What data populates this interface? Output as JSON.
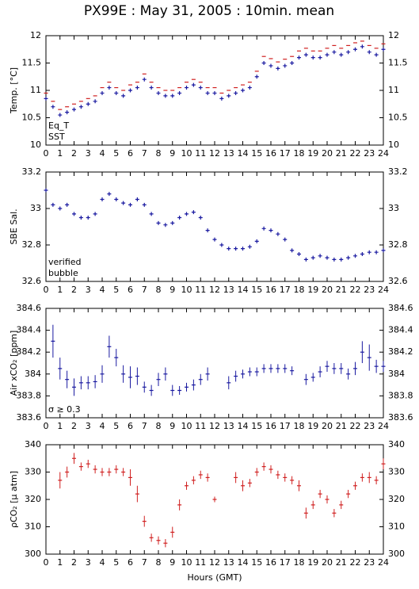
{
  "title": "PX99E : May 31, 2005 : 10min. mean",
  "chart_data": [
    {
      "type": "scatter",
      "ylabel": "Temp. [°C]",
      "x": [
        0,
        0.5,
        1,
        1.5,
        2,
        2.5,
        3,
        3.5,
        4,
        4.5,
        5,
        5.5,
        6,
        6.5,
        7,
        7.5,
        8,
        8.5,
        9,
        9.5,
        10,
        10.5,
        11,
        11.5,
        12,
        12.5,
        13,
        13.5,
        14,
        14.5,
        15,
        15.5,
        16,
        16.5,
        17,
        17.5,
        18,
        18.5,
        19,
        19.5,
        20,
        20.5,
        21,
        21.5,
        22,
        22.5,
        23,
        23.5,
        24
      ],
      "xlim": [
        0,
        24
      ],
      "xticks": [
        0,
        1,
        2,
        3,
        4,
        5,
        6,
        7,
        8,
        9,
        10,
        11,
        12,
        13,
        14,
        15,
        16,
        17,
        18,
        19,
        20,
        21,
        22,
        23,
        24
      ],
      "ylim": [
        10,
        12
      ],
      "yticks": [
        10,
        10.5,
        11,
        11.5,
        12
      ],
      "series": [
        {
          "name": "Eq_T",
          "color": "#d02020",
          "marker": "dash",
          "values": [
            10.95,
            10.8,
            10.65,
            10.7,
            10.75,
            10.8,
            10.85,
            10.9,
            11.05,
            11.15,
            11.05,
            11.0,
            11.1,
            11.15,
            11.3,
            11.15,
            11.05,
            11.0,
            11.0,
            11.05,
            11.15,
            11.2,
            11.15,
            11.05,
            11.05,
            10.95,
            11.0,
            11.05,
            11.1,
            11.15,
            11.35,
            11.62,
            11.58,
            11.52,
            11.57,
            11.62,
            11.72,
            11.77,
            11.72,
            11.72,
            11.77,
            11.82,
            11.77,
            11.82,
            11.87,
            11.9,
            11.82,
            11.77,
            11.85
          ]
        },
        {
          "name": "SST",
          "color": "#1a1aa0",
          "marker": "cross",
          "values": [
            10.85,
            10.7,
            10.55,
            10.6,
            10.65,
            10.7,
            10.75,
            10.8,
            10.95,
            11.05,
            10.95,
            10.9,
            11.0,
            11.05,
            11.2,
            11.05,
            10.95,
            10.9,
            10.9,
            10.95,
            11.05,
            11.1,
            11.05,
            10.95,
            10.95,
            10.85,
            10.9,
            10.95,
            11.0,
            11.05,
            11.25,
            11.5,
            11.45,
            11.4,
            11.45,
            11.5,
            11.6,
            11.65,
            11.6,
            11.6,
            11.65,
            11.7,
            11.65,
            11.7,
            11.75,
            11.8,
            11.7,
            11.65,
            11.75
          ]
        }
      ]
    },
    {
      "type": "scatter",
      "ylabel": "SBE Sal.",
      "x": [
        0,
        0.5,
        1,
        1.5,
        2,
        2.5,
        3,
        3.5,
        4,
        4.5,
        5,
        5.5,
        6,
        6.5,
        7,
        7.5,
        8,
        8.5,
        9,
        9.5,
        10,
        10.5,
        11,
        11.5,
        12,
        12.5,
        13,
        13.5,
        14,
        14.5,
        15,
        15.5,
        16,
        16.5,
        17,
        17.5,
        18,
        18.5,
        19,
        19.5,
        20,
        20.5,
        21,
        21.5,
        22,
        22.5,
        23,
        23.5,
        24
      ],
      "xlim": [
        0,
        24
      ],
      "xticks": [
        0,
        1,
        2,
        3,
        4,
        5,
        6,
        7,
        8,
        9,
        10,
        11,
        12,
        13,
        14,
        15,
        16,
        17,
        18,
        19,
        20,
        21,
        22,
        23,
        24
      ],
      "ylim": [
        32.6,
        33.2
      ],
      "yticks": [
        32.6,
        32.8,
        33,
        33.2
      ],
      "series": [
        {
          "name": "verified",
          "color": "#1a1aa0",
          "marker": "cross",
          "values": [
            33.1,
            33.02,
            33.0,
            33.02,
            32.97,
            32.95,
            32.95,
            32.97,
            33.05,
            33.08,
            33.05,
            33.03,
            33.02,
            33.05,
            33.02,
            32.97,
            32.92,
            32.91,
            32.92,
            32.95,
            32.97,
            32.98,
            32.95,
            32.88,
            32.83,
            32.8,
            32.78,
            32.78,
            32.78,
            32.79,
            32.82,
            32.89,
            32.88,
            32.86,
            32.83,
            32.77,
            32.75,
            32.72,
            32.73,
            32.74,
            32.73,
            32.72,
            32.72,
            32.73,
            32.74,
            32.75,
            32.76,
            32.76,
            32.77
          ]
        },
        {
          "name": "bubble",
          "color": "#c020c0",
          "marker": "cross",
          "values": [
            null,
            null,
            null,
            null,
            null,
            null,
            null,
            null,
            null,
            null,
            null,
            null,
            null,
            null,
            null,
            null,
            null,
            null,
            null,
            null,
            null,
            null,
            null,
            null,
            null,
            null,
            null,
            null,
            null,
            null,
            null,
            null,
            null,
            null,
            null,
            null,
            null,
            null,
            null,
            null,
            null,
            null,
            null,
            null,
            null,
            null,
            null,
            null,
            null
          ]
        }
      ]
    },
    {
      "type": "scatter",
      "ylabel": "Air xCO₂ [ppm]",
      "annotation": {
        "text": "σ ≥ 0.3",
        "color": "#c020c0"
      },
      "x": [
        0,
        0.5,
        1,
        1.5,
        2,
        2.5,
        3,
        3.5,
        4,
        4.5,
        5,
        5.5,
        6,
        6.5,
        7,
        7.5,
        8,
        8.5,
        9,
        9.5,
        10,
        10.5,
        11,
        11.5,
        12,
        12.5,
        13,
        13.5,
        14,
        14.5,
        15,
        15.5,
        16,
        16.5,
        17,
        17.5,
        18,
        18.5,
        19,
        19.5,
        20,
        20.5,
        21,
        21.5,
        22,
        22.5,
        23,
        23.5,
        24
      ],
      "xlim": [
        0,
        24
      ],
      "xticks": [
        0,
        1,
        2,
        3,
        4,
        5,
        6,
        7,
        8,
        9,
        10,
        11,
        12,
        13,
        14,
        15,
        16,
        17,
        18,
        19,
        20,
        21,
        22,
        23,
        24
      ],
      "ylim": [
        383.6,
        384.6
      ],
      "yticks": [
        383.6,
        383.8,
        384,
        384.2,
        384.4,
        384.6
      ],
      "series": [
        {
          "name": "xCO2",
          "color": "#1a1aa0",
          "marker": "dash",
          "values": [
            null,
            384.3,
            384.05,
            383.95,
            383.88,
            383.92,
            383.92,
            383.93,
            384.0,
            384.25,
            384.15,
            384.0,
            383.97,
            383.98,
            383.88,
            383.85,
            383.95,
            384.0,
            383.85,
            383.85,
            383.88,
            383.9,
            383.95,
            384.0,
            null,
            null,
            383.92,
            383.98,
            384.0,
            384.02,
            384.02,
            384.05,
            384.05,
            384.05,
            384.05,
            384.03,
            null,
            383.95,
            383.97,
            384.02,
            384.07,
            384.05,
            384.05,
            384.0,
            384.05,
            384.2,
            384.15,
            384.07,
            384.07
          ],
          "errors": [
            null,
            0.15,
            0.1,
            0.08,
            0.08,
            0.06,
            0.06,
            0.06,
            0.08,
            0.1,
            0.08,
            0.08,
            0.1,
            0.08,
            0.05,
            0.05,
            0.06,
            0.06,
            0.05,
            0.04,
            0.04,
            0.05,
            0.05,
            0.06,
            null,
            null,
            0.06,
            0.05,
            0.04,
            0.04,
            0.04,
            0.04,
            0.04,
            0.04,
            0.04,
            0.04,
            null,
            0.05,
            0.04,
            0.05,
            0.05,
            0.05,
            0.05,
            0.05,
            0.06,
            0.1,
            0.12,
            0.06,
            0.05
          ]
        }
      ]
    },
    {
      "type": "scatter",
      "ylabel": "ρCO₂ [μ atm]",
      "xlabel": "Hours (GMT)",
      "x": [
        0,
        0.5,
        1,
        1.5,
        2,
        2.5,
        3,
        3.5,
        4,
        4.5,
        5,
        5.5,
        6,
        6.5,
        7,
        7.5,
        8,
        8.5,
        9,
        9.5,
        10,
        10.5,
        11,
        11.5,
        12,
        12.5,
        13,
        13.5,
        14,
        14.5,
        15,
        15.5,
        16,
        16.5,
        17,
        17.5,
        18,
        18.5,
        19,
        19.5,
        20,
        20.5,
        21,
        21.5,
        22,
        22.5,
        23,
        23.5,
        24
      ],
      "xlim": [
        0,
        24
      ],
      "xticks": [
        0,
        1,
        2,
        3,
        4,
        5,
        6,
        7,
        8,
        9,
        10,
        11,
        12,
        13,
        14,
        15,
        16,
        17,
        18,
        19,
        20,
        21,
        22,
        23,
        24
      ],
      "ylim": [
        300,
        340
      ],
      "yticks": [
        300,
        310,
        320,
        330,
        340
      ],
      "series": [
        {
          "name": "pCO2",
          "color": "#d02020",
          "marker": "dash",
          "values": [
            null,
            null,
            327,
            330,
            335,
            332,
            333,
            331,
            330,
            330,
            331,
            330,
            328,
            322,
            312,
            306,
            305,
            304,
            308,
            318,
            325,
            327,
            329,
            328,
            320,
            null,
            null,
            328,
            325,
            326,
            330,
            332,
            331,
            329,
            328,
            327,
            325,
            315,
            318,
            322,
            320,
            315,
            318,
            322,
            325,
            328,
            328,
            327,
            333
          ],
          "errors": [
            null,
            null,
            3,
            2,
            2,
            1.5,
            1.5,
            1.5,
            1.5,
            1.5,
            1.5,
            1.5,
            3,
            3,
            2,
            1.5,
            1.5,
            1.5,
            2,
            2,
            1.5,
            1.5,
            1.5,
            1.5,
            1,
            null,
            null,
            2,
            2,
            1.5,
            1.5,
            1.5,
            1.5,
            1.5,
            1.5,
            1.5,
            2,
            2,
            1.5,
            1.5,
            1.5,
            1.5,
            1.5,
            1.5,
            1.5,
            1.5,
            2,
            1.5,
            2
          ]
        }
      ]
    }
  ]
}
